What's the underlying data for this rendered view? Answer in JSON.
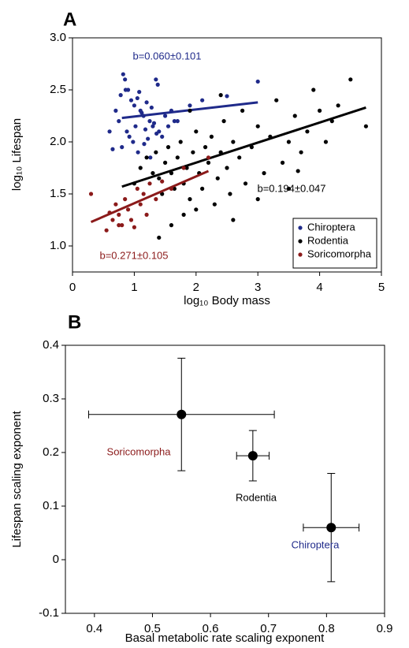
{
  "chart_data": [
    {
      "type": "scatter",
      "panel": "A",
      "xlabel": "log₁₀ Body mass",
      "ylabel": "log₁₀ Lifespan",
      "xlim": [
        0,
        5
      ],
      "ylim": [
        0.75,
        3.0
      ],
      "xticks": [
        0,
        1,
        2,
        3,
        4,
        5
      ],
      "yticks": [
        {
          "value": 1.0,
          "label": "1.0"
        },
        1.5,
        {
          "value": 2.0,
          "label": "2.0"
        },
        2.5,
        {
          "value": 3.0,
          "label": "3.0"
        }
      ],
      "legend": "lower right",
      "series": [
        {
          "name": "Chiroptera",
          "color": "#1f2a8a",
          "annotation": "b=0.060±0.101",
          "x": [
            0.82,
            0.85,
            0.9,
            0.78,
            0.95,
            1.0,
            1.05,
            1.1,
            1.15,
            1.2,
            1.25,
            1.3,
            1.35,
            1.38,
            0.7,
            0.75,
            0.88,
            0.92,
            0.98,
            1.02,
            1.08,
            1.12,
            1.18,
            1.22,
            1.28,
            1.32,
            1.4,
            1.45,
            1.5,
            1.55,
            1.6,
            1.65,
            0.6,
            0.65,
            0.8,
            0.86,
            1.06,
            1.16,
            1.26,
            1.7,
            1.9,
            2.1,
            2.5,
            3.0,
            1.36
          ],
          "values": [
            2.65,
            2.6,
            2.5,
            2.45,
            2.4,
            2.35,
            2.42,
            2.3,
            2.25,
            2.38,
            2.2,
            2.15,
            2.6,
            2.55,
            2.3,
            2.2,
            2.1,
            2.05,
            2.0,
            2.15,
            2.48,
            2.28,
            2.12,
            2.03,
            2.33,
            2.18,
            2.1,
            2.05,
            2.25,
            2.15,
            2.3,
            2.2,
            2.1,
            1.93,
            1.95,
            2.5,
            1.9,
            1.98,
            1.85,
            2.2,
            2.35,
            2.4,
            2.44,
            2.58,
            2.08
          ],
          "fit_x": [
            0.8,
            3.0
          ],
          "fit_y": [
            2.23,
            2.38
          ]
        },
        {
          "name": "Rodentia",
          "color": "#000000",
          "annotation": "b=0.194±0.047",
          "x": [
            1.0,
            1.1,
            1.2,
            1.3,
            1.35,
            1.4,
            1.45,
            1.5,
            1.55,
            1.6,
            1.65,
            1.7,
            1.75,
            1.8,
            1.85,
            1.9,
            1.95,
            2.0,
            2.05,
            2.1,
            2.15,
            2.2,
            2.25,
            2.3,
            2.35,
            2.4,
            2.45,
            2.5,
            2.55,
            2.6,
            2.7,
            2.75,
            2.8,
            2.9,
            3.0,
            3.1,
            3.2,
            3.3,
            3.4,
            3.5,
            3.6,
            3.7,
            3.8,
            3.9,
            4.0,
            4.1,
            4.2,
            4.3,
            4.5,
            4.75,
            1.4,
            1.6,
            1.8,
            2.0,
            2.6,
            3.0,
            3.5,
            2.4,
            1.9,
            3.65
          ],
          "values": [
            1.6,
            1.75,
            1.85,
            1.7,
            1.9,
            1.65,
            1.5,
            1.8,
            1.95,
            1.7,
            1.55,
            1.85,
            2.0,
            1.6,
            1.75,
            1.45,
            1.9,
            2.1,
            1.7,
            1.55,
            1.95,
            1.8,
            2.05,
            1.4,
            1.65,
            1.9,
            2.2,
            1.75,
            1.5,
            2.0,
            1.85,
            2.3,
            1.6,
            1.95,
            2.15,
            1.7,
            2.05,
            2.4,
            1.8,
            2.0,
            2.25,
            1.9,
            2.1,
            2.5,
            2.3,
            2.0,
            2.2,
            2.35,
            2.6,
            2.15,
            1.08,
            1.2,
            1.3,
            1.35,
            1.25,
            1.45,
            1.55,
            2.45,
            2.3,
            1.72
          ],
          "fit_x": [
            0.8,
            4.75
          ],
          "fit_y": [
            1.57,
            2.33
          ]
        },
        {
          "name": "Soricomorpha",
          "color": "#8b1a1a",
          "annotation": "b=0.271±0.105",
          "x": [
            0.3,
            0.55,
            0.6,
            0.65,
            0.7,
            0.75,
            0.8,
            0.85,
            0.9,
            0.95,
            1.0,
            1.05,
            1.1,
            1.15,
            1.2,
            1.25,
            1.35,
            1.45,
            1.6,
            1.8,
            2.2,
            0.75
          ],
          "values": [
            1.5,
            1.15,
            1.32,
            1.25,
            1.4,
            1.3,
            1.2,
            1.45,
            1.35,
            1.25,
            1.18,
            1.55,
            1.4,
            1.5,
            1.3,
            1.6,
            1.45,
            1.62,
            1.55,
            1.75,
            1.85,
            1.2
          ],
          "fit_x": [
            0.3,
            2.2
          ],
          "fit_y": [
            1.23,
            1.72
          ]
        }
      ]
    },
    {
      "type": "scatter",
      "panel": "B",
      "xlabel": "Basal metabolic rate scaling exponent",
      "ylabel": "Lifespan scaling exponent",
      "xlim": [
        0.35,
        0.9
      ],
      "ylim": [
        -0.1,
        0.4
      ],
      "xticks": [
        0.4,
        0.5,
        0.6,
        0.7,
        0.8,
        0.9
      ],
      "yticks": [
        -0.1,
        0,
        0.1,
        0.2,
        0.3,
        0.4
      ],
      "series": [
        {
          "name": "Soricomorpha",
          "color": "#8b1a1a",
          "x": [
            0.55
          ],
          "values": [
            0.271
          ],
          "xerr": [
            0.16
          ],
          "yerr": [
            0.105
          ]
        },
        {
          "name": "Rodentia",
          "color": "#000000",
          "x": [
            0.673
          ],
          "values": [
            0.194
          ],
          "xerr": [
            0.028
          ],
          "yerr": [
            0.047
          ]
        },
        {
          "name": "Chiroptera",
          "color": "#1f2a8a",
          "x": [
            0.808
          ],
          "values": [
            0.06
          ],
          "xerr": [
            0.048
          ],
          "yerr": [
            0.101
          ]
        }
      ]
    }
  ]
}
